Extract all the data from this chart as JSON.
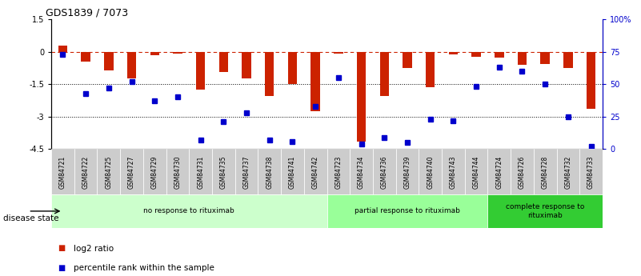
{
  "title": "GDS1839 / 7073",
  "samples": [
    "GSM84721",
    "GSM84722",
    "GSM84725",
    "GSM84727",
    "GSM84729",
    "GSM84730",
    "GSM84731",
    "GSM84735",
    "GSM84737",
    "GSM84738",
    "GSM84741",
    "GSM84742",
    "GSM84723",
    "GSM84734",
    "GSM84736",
    "GSM84739",
    "GSM84740",
    "GSM84743",
    "GSM84744",
    "GSM84724",
    "GSM84726",
    "GSM84728",
    "GSM84732",
    "GSM84733"
  ],
  "log2_ratio": [
    0.3,
    -0.45,
    -0.85,
    -1.25,
    -0.15,
    -0.08,
    -1.75,
    -0.95,
    -1.25,
    -2.05,
    -1.5,
    -2.75,
    -0.1,
    -4.15,
    -2.05,
    -0.75,
    -1.65,
    -0.12,
    -0.22,
    -0.28,
    -0.6,
    -0.55,
    -0.75,
    -2.65
  ],
  "percentile_rank": [
    73,
    43,
    47,
    52,
    37,
    40,
    7,
    21,
    28,
    7,
    6,
    33,
    55,
    4,
    9,
    5,
    23,
    22,
    48,
    63,
    60,
    50,
    25,
    2
  ],
  "groups": [
    {
      "label": "no response to rituximab",
      "start": 0,
      "end": 12,
      "color": "#ccffcc"
    },
    {
      "label": "partial response to rituximab",
      "start": 12,
      "end": 19,
      "color": "#99ff99"
    },
    {
      "label": "complete response to\nrituximab",
      "start": 19,
      "end": 24,
      "color": "#33cc33"
    }
  ],
  "bar_color": "#cc2200",
  "marker_color": "#0000cc",
  "ylim_left": [
    -4.5,
    1.5
  ],
  "ylim_right": [
    0,
    100
  ],
  "yticks_left": [
    1.5,
    0,
    -1.5,
    -3.0,
    -4.5
  ],
  "yticks_right": [
    100,
    75,
    50,
    25,
    0
  ],
  "dotted_lines": [
    -1.5,
    -3.0
  ],
  "legend_items": [
    {
      "label": "log2 ratio",
      "color": "#cc2200"
    },
    {
      "label": "percentile rank within the sample",
      "color": "#0000cc"
    }
  ],
  "figsize": [
    8.01,
    3.45
  ],
  "dpi": 100
}
